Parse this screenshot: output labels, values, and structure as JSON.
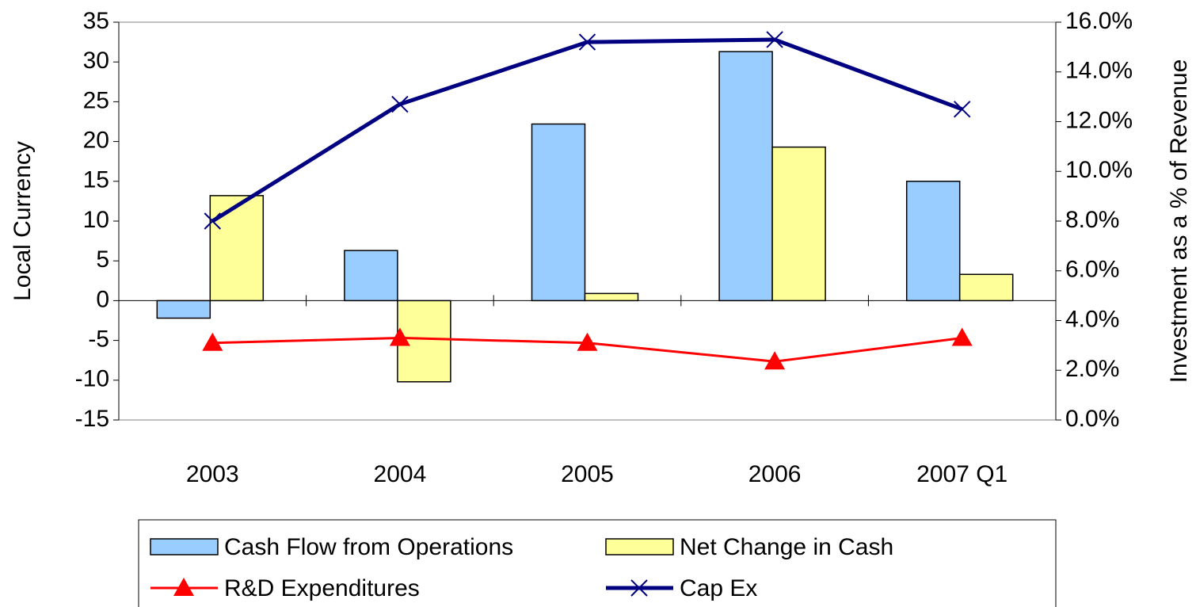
{
  "chart_data": {
    "type": "bar-line",
    "categories": [
      "2003",
      "2004",
      "2005",
      "2006",
      "2007 Q1"
    ],
    "y_axis_label": "Local Currency",
    "y2_axis_label": "Investment as a % of Revenue",
    "ylim": [
      -15,
      35
    ],
    "yticks": [
      -15,
      -10,
      -5,
      0,
      5,
      10,
      15,
      20,
      25,
      30,
      35
    ],
    "y2lim": [
      0,
      16
    ],
    "y2ticks": [
      {
        "value": 0,
        "label": "0.0%"
      },
      {
        "value": 2,
        "label": "2.0%"
      },
      {
        "value": 4,
        "label": "4.0%"
      },
      {
        "value": 6,
        "label": "6.0%"
      },
      {
        "value": 8,
        "label": "8.0%"
      },
      {
        "value": 10,
        "label": "10.0%"
      },
      {
        "value": 12,
        "label": "12.0%"
      },
      {
        "value": 14,
        "label": "14.0%"
      },
      {
        "value": 16,
        "label": "16.0%"
      }
    ],
    "series": [
      {
        "name": "Cash Flow from Operations",
        "type": "bar",
        "color": "#99ccff",
        "values": [
          -2.2,
          6.3,
          22.2,
          31.3,
          15.0
        ]
      },
      {
        "name": "Net Change in Cash",
        "type": "bar",
        "color": "#ffff99",
        "values": [
          13.2,
          -10.2,
          0.9,
          19.3,
          3.3
        ]
      },
      {
        "name": "R&D Expenditures",
        "type": "line",
        "marker": "triangle",
        "axis": "y2",
        "color": "#ff0000",
        "values": [
          3.1,
          3.3,
          3.1,
          2.35,
          3.3
        ]
      },
      {
        "name": "Cap Ex",
        "type": "line",
        "marker": "x",
        "axis": "y2",
        "color": "#000080",
        "values": [
          8.0,
          12.7,
          15.2,
          15.3,
          12.5
        ]
      }
    ]
  }
}
